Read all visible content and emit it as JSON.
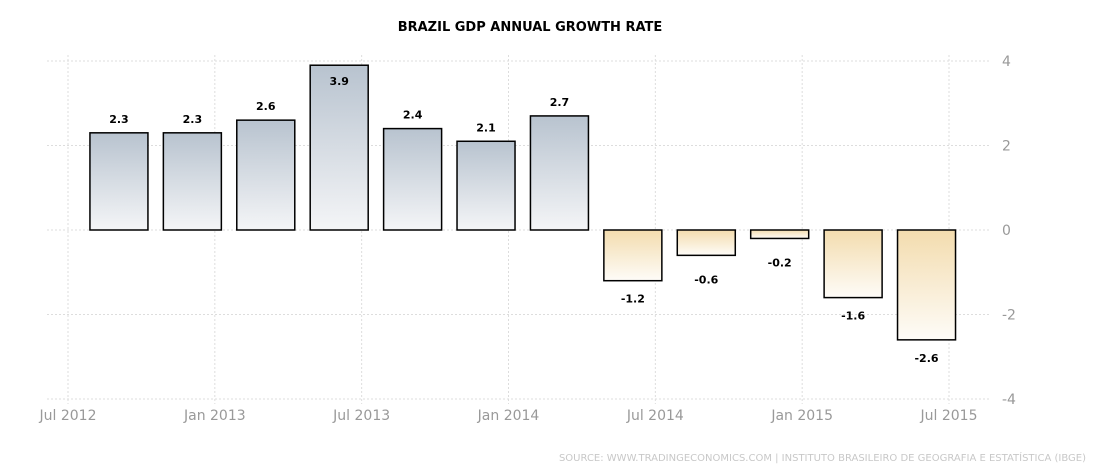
{
  "chart_data": {
    "type": "bar",
    "title": "BRAZIL GDP ANNUAL GROWTH RATE",
    "source": "SOURCE: WWW.TRADINGECONOMICS.COM | INSTITUTO BRASILEIRO DE GEOGRAFIA E ESTATÍSTICA (IBGE)",
    "categories": [
      "2012-09",
      "2012-12",
      "2013-03",
      "2013-06",
      "2013-09",
      "2013-12",
      "2014-03",
      "2014-06",
      "2014-09",
      "2014-12",
      "2015-03",
      "2015-06"
    ],
    "values": [
      2.3,
      2.3,
      2.6,
      3.9,
      2.4,
      2.1,
      2.7,
      -1.2,
      -0.6,
      -0.2,
      -1.6,
      -2.6
    ],
    "x_ticks": [
      "Jul 2012",
      "Jan 2013",
      "Jul 2013",
      "Jan 2014",
      "Jul 2014",
      "Jan 2015",
      "Jul 2015"
    ],
    "y_ticks": [
      4,
      2,
      0,
      -2,
      -4
    ],
    "ylim": [
      -4,
      4
    ],
    "grid": true,
    "colors": {
      "positive_top": "#b8c3cf",
      "positive_bottom": "#f4f5f7",
      "negative_top": "#f3dcae",
      "negative_bottom": "#fefcf8",
      "border": "#000000"
    }
  }
}
